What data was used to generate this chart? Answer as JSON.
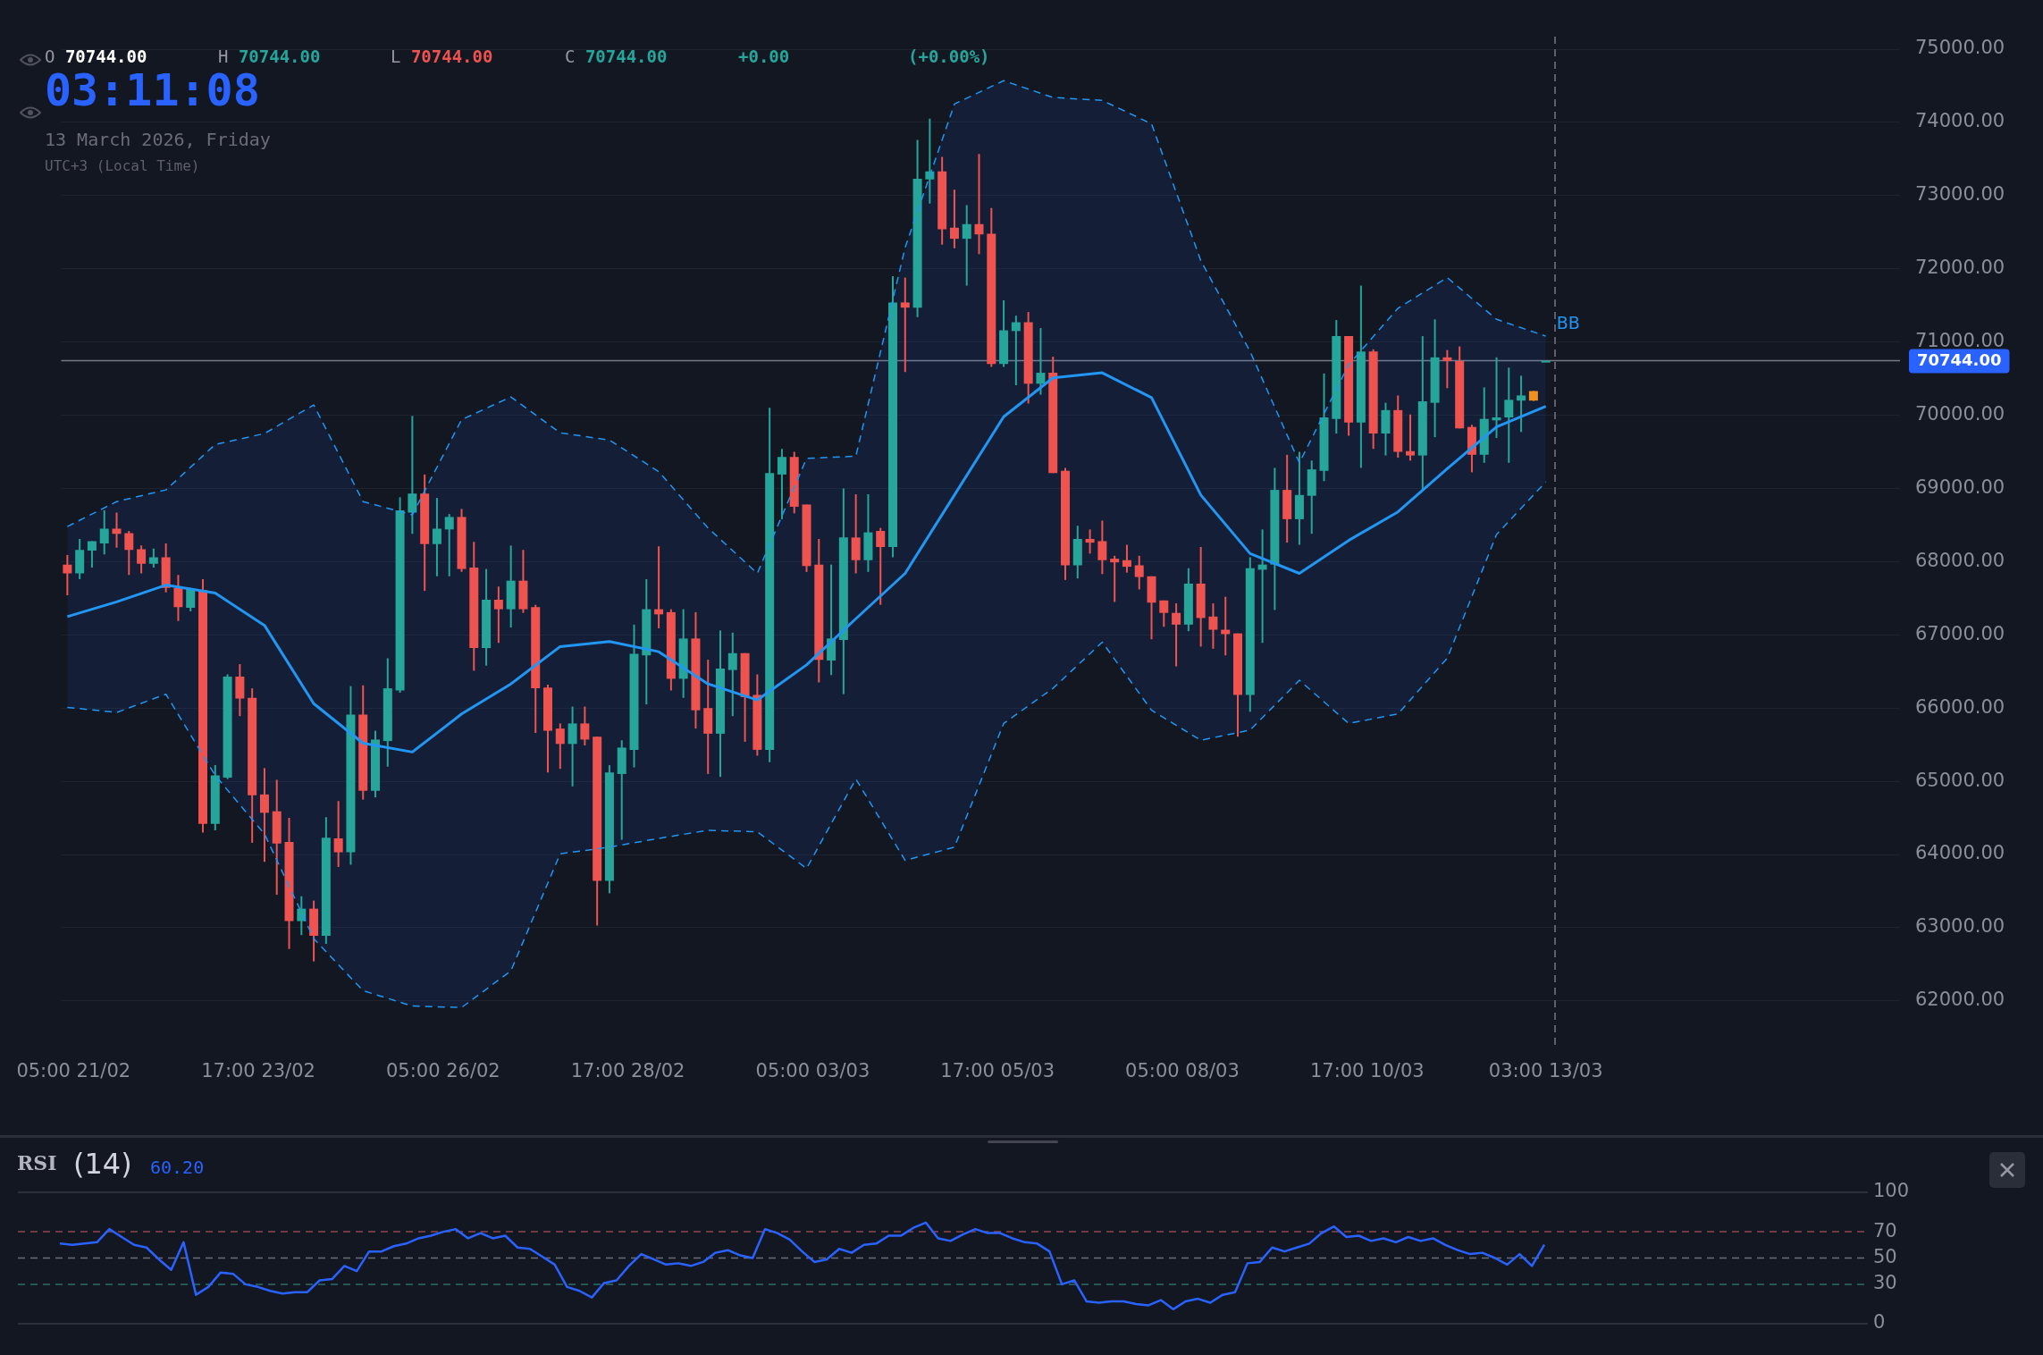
{
  "chart_data": [
    {
      "type": "candlestick",
      "x": [
        "2026-02-21T03:00",
        "2026-02-21T07:00",
        "2026-02-21T11:00",
        "2026-02-21T15:00",
        "2026-02-21T19:00",
        "2026-02-21T23:00",
        "2026-02-22T03:00",
        "2026-02-22T07:00",
        "2026-02-22T11:00",
        "2026-02-22T15:00",
        "2026-02-22T19:00",
        "2026-02-22T23:00",
        "2026-02-23T03:00",
        "2026-02-23T07:00",
        "2026-02-23T11:00",
        "2026-02-23T15:00",
        "2026-02-23T19:00",
        "2026-02-23T23:00",
        "2026-02-24T03:00",
        "2026-02-24T07:00",
        "2026-02-24T11:00",
        "2026-02-24T15:00",
        "2026-02-24T19:00",
        "2026-02-24T23:00",
        "2026-02-25T03:00",
        "2026-02-25T07:00",
        "2026-02-25T11:00",
        "2026-02-25T15:00",
        "2026-02-25T19:00",
        "2026-02-25T23:00",
        "2026-02-26T03:00",
        "2026-02-26T07:00",
        "2026-02-26T11:00",
        "2026-02-26T15:00",
        "2026-02-26T19:00",
        "2026-02-26T23:00",
        "2026-02-27T03:00",
        "2026-02-27T07:00",
        "2026-02-27T11:00",
        "2026-02-27T15:00",
        "2026-02-27T19:00",
        "2026-02-27T23:00",
        "2026-02-28T03:00",
        "2026-02-28T07:00",
        "2026-02-28T11:00",
        "2026-02-28T15:00",
        "2026-02-28T19:00",
        "2026-02-28T23:00",
        "2026-03-01T03:00",
        "2026-03-01T07:00",
        "2026-03-01T11:00",
        "2026-03-01T15:00",
        "2026-03-01T19:00",
        "2026-03-01T23:00",
        "2026-03-02T03:00",
        "2026-03-02T07:00",
        "2026-03-02T11:00",
        "2026-03-02T15:00",
        "2026-03-02T19:00",
        "2026-03-02T23:00",
        "2026-03-03T03:00",
        "2026-03-03T07:00",
        "2026-03-03T11:00",
        "2026-03-03T15:00",
        "2026-03-03T19:00",
        "2026-03-03T23:00",
        "2026-03-04T03:00",
        "2026-03-04T07:00",
        "2026-03-04T11:00",
        "2026-03-04T15:00",
        "2026-03-04T19:00",
        "2026-03-04T23:00",
        "2026-03-05T03:00",
        "2026-03-05T07:00",
        "2026-03-05T11:00",
        "2026-03-05T15:00",
        "2026-03-05T19:00",
        "2026-03-05T23:00",
        "2026-03-06T03:00",
        "2026-03-06T07:00",
        "2026-03-06T11:00",
        "2026-03-06T15:00",
        "2026-03-06T19:00",
        "2026-03-06T23:00",
        "2026-03-07T03:00",
        "2026-03-07T07:00",
        "2026-03-07T11:00",
        "2026-03-07T15:00",
        "2026-03-07T19:00",
        "2026-03-07T23:00",
        "2026-03-08T03:00",
        "2026-03-08T07:00",
        "2026-03-08T11:00",
        "2026-03-08T15:00",
        "2026-03-08T19:00",
        "2026-03-08T23:00",
        "2026-03-09T03:00",
        "2026-03-09T07:00",
        "2026-03-09T11:00",
        "2026-03-09T15:00",
        "2026-03-09T19:00",
        "2026-03-09T23:00",
        "2026-03-10T03:00",
        "2026-03-10T07:00",
        "2026-03-10T11:00",
        "2026-03-10T15:00",
        "2026-03-10T19:00",
        "2026-03-10T23:00",
        "2026-03-11T03:00",
        "2026-03-11T07:00",
        "2026-03-11T11:00",
        "2026-03-11T15:00",
        "2026-03-11T19:00",
        "2026-03-11T23:00",
        "2026-03-12T03:00",
        "2026-03-12T07:00",
        "2026-03-12T11:00",
        "2026-03-12T15:00",
        "2026-03-12T19:00",
        "2026-03-12T23:00",
        "2026-03-13T03:00"
      ],
      "ohlc": [
        [
          67960,
          68090,
          67540,
          67840
        ],
        [
          67840,
          68310,
          67760,
          68160
        ],
        [
          68150,
          68280,
          67920,
          68280
        ],
        [
          68250,
          68700,
          68100,
          68450
        ],
        [
          68450,
          68670,
          68190,
          68380
        ],
        [
          68390,
          68420,
          67820,
          68160
        ],
        [
          68170,
          68220,
          67840,
          67970
        ],
        [
          67970,
          68180,
          67920,
          68060
        ],
        [
          68060,
          68250,
          67580,
          67640
        ],
        [
          67640,
          67820,
          67190,
          67380
        ],
        [
          67370,
          67640,
          67320,
          67630
        ],
        [
          67610,
          67760,
          64300,
          64420
        ],
        [
          64420,
          65220,
          64330,
          65080
        ],
        [
          65050,
          66460,
          65030,
          66430
        ],
        [
          66430,
          66600,
          65890,
          66130
        ],
        [
          66140,
          66270,
          64160,
          64810
        ],
        [
          64820,
          65180,
          63900,
          64570
        ],
        [
          64590,
          65020,
          63450,
          64150
        ],
        [
          64170,
          64500,
          62710,
          63090
        ],
        [
          63090,
          63430,
          62900,
          63260
        ],
        [
          63260,
          63370,
          62540,
          62890
        ],
        [
          62890,
          64510,
          62780,
          64230
        ],
        [
          64220,
          64730,
          63830,
          64030
        ],
        [
          64030,
          66300,
          63860,
          65910
        ],
        [
          65910,
          66310,
          64750,
          64870
        ],
        [
          64870,
          65690,
          64780,
          65570
        ],
        [
          65550,
          66680,
          65200,
          66270
        ],
        [
          66240,
          68880,
          66210,
          68700
        ],
        [
          68670,
          69990,
          68380,
          68930
        ],
        [
          68930,
          69190,
          67600,
          68240
        ],
        [
          68240,
          68870,
          67800,
          68450
        ],
        [
          68440,
          68650,
          67800,
          68610
        ],
        [
          68610,
          68720,
          67860,
          67900
        ],
        [
          67920,
          68270,
          66510,
          66820
        ],
        [
          66820,
          67900,
          66580,
          67480
        ],
        [
          67480,
          67660,
          66890,
          67350
        ],
        [
          67350,
          68220,
          67100,
          67740
        ],
        [
          67740,
          68160,
          67300,
          67350
        ],
        [
          67380,
          67410,
          65660,
          66270
        ],
        [
          66280,
          66320,
          65120,
          65690
        ],
        [
          65720,
          65790,
          65170,
          65510
        ],
        [
          65510,
          66020,
          64930,
          65790
        ],
        [
          65790,
          66020,
          65490,
          65570
        ],
        [
          65610,
          65610,
          63030,
          63640
        ],
        [
          63640,
          65220,
          63470,
          65120
        ],
        [
          65100,
          65560,
          64200,
          65460
        ],
        [
          65430,
          67140,
          65190,
          66740
        ],
        [
          66720,
          67760,
          66050,
          67350
        ],
        [
          67350,
          68210,
          67090,
          67280
        ],
        [
          67310,
          67350,
          66240,
          66400
        ],
        [
          66400,
          67350,
          66140,
          66950
        ],
        [
          66950,
          67310,
          65720,
          65970
        ],
        [
          66000,
          66660,
          65100,
          65650
        ],
        [
          65650,
          67060,
          65060,
          66540
        ],
        [
          66520,
          67030,
          65890,
          66750
        ],
        [
          66750,
          66750,
          65540,
          66150
        ],
        [
          66180,
          66460,
          65350,
          65430
        ],
        [
          65430,
          70100,
          65260,
          69210
        ],
        [
          69190,
          69540,
          68580,
          69430
        ],
        [
          69430,
          69500,
          68660,
          68750
        ],
        [
          68780,
          68780,
          67860,
          67940
        ],
        [
          67960,
          68310,
          66350,
          66660
        ],
        [
          66650,
          67960,
          66450,
          66950
        ],
        [
          66930,
          69000,
          66190,
          68330
        ],
        [
          68330,
          68920,
          67840,
          68020
        ],
        [
          68020,
          68920,
          67860,
          68400
        ],
        [
          68420,
          68460,
          67410,
          68200
        ],
        [
          68200,
          71900,
          68060,
          71540
        ],
        [
          71540,
          71880,
          70590,
          71470
        ],
        [
          71470,
          73760,
          71340,
          73230
        ],
        [
          73220,
          74050,
          72890,
          73330
        ],
        [
          73330,
          73530,
          72330,
          72540
        ],
        [
          72560,
          73080,
          72280,
          72410
        ],
        [
          72410,
          72870,
          71770,
          72610
        ],
        [
          72610,
          73570,
          72200,
          72470
        ],
        [
          72480,
          72830,
          70660,
          70700
        ],
        [
          70700,
          71570,
          70660,
          71160
        ],
        [
          71150,
          71360,
          70410,
          71270
        ],
        [
          71270,
          71410,
          70160,
          70430
        ],
        [
          70430,
          71190,
          70280,
          70580
        ],
        [
          70580,
          70800,
          69210,
          69210
        ],
        [
          69240,
          69280,
          67750,
          67950
        ],
        [
          67950,
          68490,
          67770,
          68310
        ],
        [
          68310,
          68440,
          68110,
          68260
        ],
        [
          68280,
          68560,
          67830,
          68020
        ],
        [
          68040,
          68080,
          67450,
          67990
        ],
        [
          68020,
          68230,
          67850,
          67930
        ],
        [
          67950,
          68080,
          67620,
          67790
        ],
        [
          67800,
          67800,
          66940,
          67440
        ],
        [
          67470,
          67470,
          67110,
          67300
        ],
        [
          67300,
          67430,
          66570,
          67140
        ],
        [
          67140,
          67910,
          67050,
          67700
        ],
        [
          67700,
          68200,
          66840,
          67230
        ],
        [
          67250,
          67430,
          66810,
          67070
        ],
        [
          67070,
          67520,
          66720,
          67010
        ],
        [
          67020,
          67020,
          65610,
          66180
        ],
        [
          66180,
          68060,
          65950,
          67910
        ],
        [
          67890,
          68440,
          66890,
          67960
        ],
        [
          67960,
          69280,
          67340,
          68980
        ],
        [
          68980,
          69460,
          68260,
          68580
        ],
        [
          68580,
          69500,
          68230,
          68910
        ],
        [
          68900,
          69380,
          68380,
          69260
        ],
        [
          69240,
          70570,
          69100,
          69970
        ],
        [
          69950,
          71300,
          69750,
          71080
        ],
        [
          71080,
          71080,
          69720,
          69900
        ],
        [
          69900,
          71770,
          69280,
          70870
        ],
        [
          70870,
          70900,
          69540,
          69750
        ],
        [
          69750,
          70170,
          69450,
          70070
        ],
        [
          70070,
          70270,
          69420,
          69500
        ],
        [
          69510,
          70010,
          69380,
          69450
        ],
        [
          69450,
          71080,
          68980,
          70190
        ],
        [
          70170,
          71310,
          69700,
          70790
        ],
        [
          70790,
          70890,
          70370,
          70740
        ],
        [
          70740,
          70940,
          69820,
          69820
        ],
        [
          69840,
          69870,
          69220,
          69460
        ],
        [
          69460,
          70380,
          69350,
          69950
        ],
        [
          69930,
          70790,
          69690,
          69970
        ],
        [
          69970,
          70650,
          69350,
          70210
        ],
        [
          70200,
          70540,
          69770,
          70270
        ],
        [
          70200,
          70330,
          70195,
          70330
        ],
        [
          70744,
          70744,
          70744,
          70744
        ]
      ],
      "colors": [
        "#ef5350",
        "#26a69a",
        "#26a69a",
        "#26a69a",
        "#ef5350",
        "#ef5350",
        "#ef5350",
        "#26a69a",
        "#ef5350",
        "#ef5350",
        "#26a69a",
        "#ef5350",
        "#26a69a",
        "#26a69a",
        "#ef5350",
        "#ef5350",
        "#ef5350",
        "#ef5350",
        "#ef5350",
        "#26a69a",
        "#ef5350",
        "#26a69a",
        "#ef5350",
        "#26a69a",
        "#ef5350",
        "#26a69a",
        "#26a69a",
        "#26a69a",
        "#26a69a",
        "#ef5350",
        "#26a69a",
        "#26a69a",
        "#ef5350",
        "#ef5350",
        "#26a69a",
        "#ef5350",
        "#26a69a",
        "#ef5350",
        "#ef5350",
        "#ef5350",
        "#ef5350",
        "#26a69a",
        "#ef5350",
        "#ef5350",
        "#26a69a",
        "#26a69a",
        "#26a69a",
        "#26a69a",
        "#ef5350",
        "#ef5350",
        "#26a69a",
        "#ef5350",
        "#ef5350",
        "#26a69a",
        "#26a69a",
        "#ef5350",
        "#ef5350",
        "#26a69a",
        "#26a69a",
        "#ef5350",
        "#ef5350",
        "#ef5350",
        "#26a69a",
        "#26a69a",
        "#ef5350",
        "#26a69a",
        "#ef5350",
        "#26a69a",
        "#ef5350",
        "#26a69a",
        "#26a69a",
        "#ef5350",
        "#ef5350",
        "#26a69a",
        "#ef5350",
        "#ef5350",
        "#26a69a",
        "#26a69a",
        "#ef5350",
        "#26a69a",
        "#ef5350",
        "#ef5350",
        "#26a69a",
        "#ef5350",
        "#ef5350",
        "#ef5350",
        "#ef5350",
        "#ef5350",
        "#ef5350",
        "#ef5350",
        "#ef5350",
        "#26a69a",
        "#ef5350",
        "#ef5350",
        "#ef5350",
        "#ef5350",
        "#26a69a",
        "#26a69a",
        "#26a69a",
        "#ef5350",
        "#26a69a",
        "#26a69a",
        "#26a69a",
        "#26a69a",
        "#ef5350",
        "#26a69a",
        "#ef5350",
        "#26a69a",
        "#ef5350",
        "#ef5350",
        "#26a69a",
        "#26a69a",
        "#ef5350",
        "#ef5350",
        "#ef5350",
        "#26a69a",
        "#26a69a",
        "#26a69a",
        "#26a69a",
        "#f0901e",
        "#26a69a"
      ],
      "series": [
        {
          "name": "BB",
          "type": "line",
          "color": "#2196f3",
          "line_style": "dashed",
          "x": [
            "2026-02-21T03:00",
            "2026-02-21T19:00",
            "2026-02-22T11:00",
            "2026-02-23T03:00",
            "2026-02-23T19:00",
            "2026-02-24T11:00",
            "2026-02-25T03:00",
            "2026-02-25T19:00",
            "2026-02-26T11:00",
            "2026-02-27T03:00",
            "2026-02-27T19:00",
            "2026-02-28T11:00",
            "2026-03-01T03:00",
            "2026-03-01T19:00",
            "2026-03-02T11:00",
            "2026-03-03T03:00",
            "2026-03-03T19:00",
            "2026-03-04T11:00",
            "2026-03-05T03:00",
            "2026-03-05T19:00",
            "2026-03-06T11:00",
            "2026-03-07T03:00",
            "2026-03-07T19:00",
            "2026-03-08T11:00",
            "2026-03-09T03:00",
            "2026-03-09T19:00",
            "2026-03-10T11:00",
            "2026-03-11T03:00",
            "2026-03-11T19:00",
            "2026-03-12T11:00",
            "2026-03-13T03:00"
          ],
          "values": [
            68480,
            68820,
            68980,
            69600,
            69750,
            70140,
            68820,
            68640,
            69940,
            70250,
            69760,
            69660,
            69230,
            68460,
            67840,
            69410,
            69440,
            72290,
            74250,
            74570,
            74340,
            74300,
            73980,
            72110,
            70870,
            69350,
            70690,
            71460,
            71880,
            71310,
            71080
          ]
        },
        {
          "type": "line",
          "color": "#2196f3",
          "line_style": "solid",
          "x": [
            "2026-02-21T03:00",
            "2026-02-21T19:00",
            "2026-02-22T11:00",
            "2026-02-23T03:00",
            "2026-02-23T19:00",
            "2026-02-24T11:00",
            "2026-02-25T03:00",
            "2026-02-25T19:00",
            "2026-02-26T11:00",
            "2026-02-27T03:00",
            "2026-02-27T19:00",
            "2026-02-28T11:00",
            "2026-03-01T03:00",
            "2026-03-01T19:00",
            "2026-03-02T11:00",
            "2026-03-03T03:00",
            "2026-03-03T19:00",
            "2026-03-04T11:00",
            "2026-03-05T03:00",
            "2026-03-05T19:00",
            "2026-03-06T11:00",
            "2026-03-07T03:00",
            "2026-03-07T19:00",
            "2026-03-08T11:00",
            "2026-03-09T03:00",
            "2026-03-09T19:00",
            "2026-03-10T11:00",
            "2026-03-11T03:00",
            "2026-03-11T19:00",
            "2026-03-12T11:00",
            "2026-03-13T03:00"
          ],
          "values": [
            67250,
            67450,
            67680,
            67570,
            67130,
            66060,
            65520,
            65400,
            65920,
            66330,
            66840,
            66910,
            66770,
            66330,
            66110,
            66590,
            67220,
            67840,
            68910,
            69980,
            70510,
            70580,
            70240,
            68910,
            68110,
            67840,
            68290,
            68680,
            69270,
            69840,
            70120
          ],
          "lower": [
            66010,
            65940,
            66190,
            65080,
            64280,
            62850,
            62140,
            61930,
            61910,
            62410,
            64010,
            64100,
            64220,
            64330,
            64310,
            63810,
            65030,
            63920,
            64100,
            65790,
            66270,
            66900,
            65970,
            65560,
            65700,
            66380,
            65790,
            65920,
            66680,
            68370,
            69090
          ],
          "upper": [
            68480,
            68820,
            68980,
            69600,
            69750,
            70140,
            68820,
            68640,
            69940,
            70250,
            69760,
            69660,
            69230,
            68460,
            67840,
            69410,
            69440,
            72290,
            74250,
            74570,
            74340,
            74300,
            73980,
            72110,
            70870,
            69350,
            70690,
            71460,
            71880,
            71310,
            71080
          ]
        },
        {
          "type": "line",
          "color": "#2196f3",
          "line_style": "dashed",
          "x": [
            "2026-02-21T03:00",
            "2026-02-21T19:00",
            "2026-02-22T11:00",
            "2026-02-23T03:00",
            "2026-02-23T19:00",
            "2026-02-24T11:00",
            "2026-02-25T03:00",
            "2026-02-25T19:00",
            "2026-02-26T11:00",
            "2026-02-27T03:00",
            "2026-02-27T19:00",
            "2026-02-28T11:00",
            "2026-03-01T03:00",
            "2026-03-01T19:00",
            "2026-03-02T11:00",
            "2026-03-03T03:00",
            "2026-03-03T19:00",
            "2026-03-04T11:00",
            "2026-03-05T03:00",
            "2026-03-05T19:00",
            "2026-03-06T11:00",
            "2026-03-07T03:00",
            "2026-03-07T19:00",
            "2026-03-08T11:00",
            "2026-03-09T03:00",
            "2026-03-09T19:00",
            "2026-03-10T11:00",
            "2026-03-11T03:00",
            "2026-03-11T19:00",
            "2026-03-12T11:00",
            "2026-03-13T03:00"
          ],
          "values": [
            66010,
            65940,
            66190,
            65080,
            64280,
            62850,
            62140,
            61930,
            61910,
            62410,
            64010,
            64100,
            64220,
            64330,
            64310,
            63810,
            65030,
            63920,
            64100,
            65790,
            66270,
            66900,
            65970,
            65560,
            65700,
            66380,
            65790,
            65920,
            66680,
            68370,
            69090
          ]
        }
      ],
      "xlim": [
        "2026-02-21T01:00",
        "2026-03-17T22:00"
      ],
      "xticks": [
        {
          "value": "2026-02-21T05:00",
          "label": "05:00 21/02"
        },
        {
          "value": "2026-02-23T17:00",
          "label": "17:00 23/02"
        },
        {
          "value": "2026-02-26T05:00",
          "label": "05:00 26/02"
        },
        {
          "value": "2026-02-28T17:00",
          "label": "17:00 28/02"
        },
        {
          "value": "2026-03-03T05:00",
          "label": "05:00 03/03"
        },
        {
          "value": "2026-03-05T17:00",
          "label": "17:00 05/03"
        },
        {
          "value": "2026-03-08T05:00",
          "label": "05:00 08/03"
        },
        {
          "value": "2026-03-10T17:00",
          "label": "17:00 10/03"
        },
        {
          "value": "2026-03-13T03:00",
          "label": "03:00 13/03"
        }
      ],
      "ylim": [
        61400,
        75000
      ],
      "yticks": [
        {
          "value": 62000,
          "label": "62000.00"
        },
        {
          "value": 63000,
          "label": "63000.00"
        },
        {
          "value": 64000,
          "label": "64000.00"
        },
        {
          "value": 65000,
          "label": "65000.00"
        },
        {
          "value": 66000,
          "label": "66000.00"
        },
        {
          "value": 67000,
          "label": "67000.00"
        },
        {
          "value": 68000,
          "label": "68000.00"
        },
        {
          "value": 69000,
          "label": "69000.00"
        },
        {
          "value": 70000,
          "label": "70000.00"
        },
        {
          "value": 71000,
          "label": "71000.00"
        },
        {
          "value": 72000,
          "label": "72000.00"
        },
        {
          "value": 73000,
          "label": "73000.00"
        },
        {
          "value": 74000,
          "label": "74000.00"
        },
        {
          "value": 75000,
          "label": "75000.00"
        }
      ],
      "grid": "y",
      "marker": "none",
      "ref_lines": [
        {
          "axis": "y",
          "value": 70744,
          "label": "70744.00",
          "color": "#787b86",
          "line_style": "solid"
        },
        {
          "axis": "x",
          "value": "2026-03-13T06:00",
          "color": "#5d606b",
          "line_style": "dashed"
        }
      ],
      "annotations": [
        "O 70744.00",
        "H 70744.00",
        "L 70744.00",
        "C 70744.00",
        "+0.00",
        "(+0.00%)",
        "03:11:08",
        "13 March 2026, Friday",
        "UTC+3 (Local Time)"
      ]
    },
    {
      "type": "line",
      "title": "RSI",
      "subtitle": "(14)",
      "categories": [
        null,
        null,
        null,
        null,
        null,
        null,
        null,
        null,
        null,
        null,
        null,
        null,
        null,
        null,
        null,
        null,
        null,
        null,
        null,
        null,
        null,
        null,
        null,
        null,
        null,
        null,
        null,
        null,
        null,
        null,
        null,
        null,
        null,
        null,
        null,
        null,
        null,
        null,
        null,
        null,
        null,
        null,
        null,
        null,
        null,
        null,
        null,
        null,
        null,
        null,
        null,
        null,
        null,
        null,
        null,
        null,
        null,
        null,
        null,
        null,
        null,
        null,
        null,
        null,
        null,
        null,
        null,
        null,
        null,
        null,
        null,
        null,
        null,
        null,
        null,
        null,
        null,
        null,
        null,
        null,
        null,
        null,
        null,
        null,
        null,
        null,
        null,
        null,
        null,
        null,
        null,
        null,
        null,
        null,
        null,
        null,
        null,
        null,
        null,
        null,
        null,
        null,
        null,
        null,
        null,
        null,
        null,
        null,
        null,
        null,
        null,
        null,
        null,
        null,
        null,
        null,
        null,
        null,
        null,
        null,
        null
      ],
      "series": [
        {
          "color": "#2962ff",
          "values": [
            61,
            60,
            61,
            62,
            72,
            66,
            60,
            58,
            49,
            41,
            62,
            22,
            28,
            39,
            38,
            30,
            28,
            25,
            23,
            24,
            24,
            33,
            34,
            44,
            40,
            55,
            55,
            59,
            61,
            65,
            67,
            70,
            72,
            65,
            69,
            65,
            67,
            58,
            57,
            51,
            45,
            28,
            25,
            20,
            31,
            33,
            44,
            53,
            49,
            45,
            46,
            44,
            47,
            54,
            56,
            52,
            50,
            72,
            69,
            64,
            55,
            47,
            49,
            57,
            54,
            60,
            61,
            67,
            67,
            73,
            77,
            65,
            63,
            68,
            72,
            69,
            69,
            65,
            62,
            61,
            55,
            30,
            33,
            17,
            16,
            17,
            17,
            15,
            14,
            18,
            11,
            17,
            19,
            16,
            22,
            24,
            46,
            47,
            58,
            55,
            58,
            61,
            69,
            74,
            66,
            67,
            63,
            65,
            62,
            66,
            63,
            65,
            60,
            56,
            53,
            54,
            50,
            45,
            53,
            44,
            60.2
          ]
        }
      ],
      "ylim": [
        0,
        100
      ],
      "yticks": [
        0,
        30,
        50,
        70,
        100
      ],
      "tick_labels": "y",
      "marker": "none",
      "ref_lines": [
        {
          "axis": "y",
          "value": 100,
          "color": "#363a45",
          "line_style": "solid"
        },
        {
          "axis": "y",
          "value": 70,
          "color": "#8a4a4e",
          "line_style": "dashed"
        },
        {
          "axis": "y",
          "value": 50,
          "color": "#6a6d78",
          "line_style": "dashed"
        },
        {
          "axis": "y",
          "value": 30,
          "color": "#2f6e6a",
          "line_style": "dashed"
        },
        {
          "axis": "y",
          "value": 0,
          "color": "#363a45",
          "line_style": "solid"
        }
      ],
      "annotations": [
        "60.20"
      ]
    }
  ]
}
